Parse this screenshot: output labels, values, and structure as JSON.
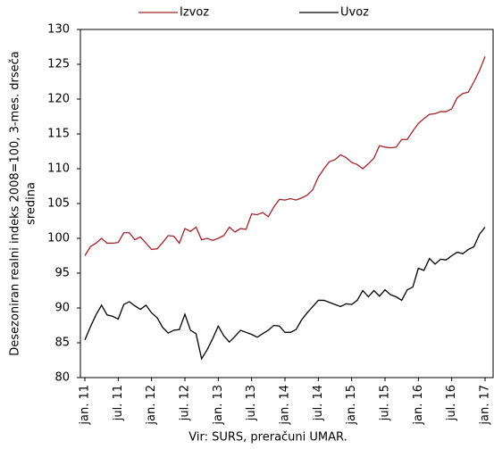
{
  "chart_data": {
    "type": "line",
    "y_label": [
      "Desezoniran realni indeks 2008=100, 3-mes. drseča",
      "sredina"
    ],
    "source": "Vir: SURS, preračuni UMAR.",
    "categories": [
      "jan. 11",
      null,
      null,
      null,
      null,
      null,
      "jul. 11",
      null,
      null,
      null,
      null,
      null,
      "jan. 12",
      null,
      null,
      null,
      null,
      null,
      "jul. 12",
      null,
      null,
      null,
      null,
      null,
      "jan. 13",
      null,
      null,
      null,
      null,
      null,
      "jul. 13",
      null,
      null,
      null,
      null,
      null,
      "jan. 14",
      null,
      null,
      null,
      null,
      null,
      "jul. 14",
      null,
      null,
      null,
      null,
      null,
      "jan. 15",
      null,
      null,
      null,
      null,
      null,
      "jul. 15",
      null,
      null,
      null,
      null,
      null,
      "jan. 16",
      null,
      null,
      null,
      null,
      null,
      "jul. 16",
      null,
      null,
      null,
      null,
      null,
      "jan. 17"
    ],
    "series": [
      {
        "name": "Izvoz",
        "color": "#a0242b",
        "values": [
          97.5,
          98.8,
          99.3,
          100.0,
          99.3,
          99.3,
          99.4,
          100.8,
          100.8,
          99.8,
          100.2,
          99.3,
          98.4,
          98.5,
          99.4,
          100.4,
          100.3,
          99.3,
          101.4,
          101.0,
          101.6,
          99.8,
          100.0,
          99.7,
          100.0,
          100.4,
          101.6,
          100.9,
          101.4,
          101.3,
          103.5,
          103.4,
          103.7,
          103.1,
          104.5,
          105.6,
          105.5,
          105.7,
          105.5,
          105.8,
          106.2,
          107.0,
          108.8,
          110.0,
          111.0,
          111.3,
          112.0,
          111.6,
          110.9,
          110.6,
          110.0,
          110.7,
          111.5,
          113.3,
          113.1,
          113.0,
          113.1,
          114.2,
          114.2,
          115.4,
          116.5,
          117.2,
          117.8,
          117.9,
          118.2,
          118.2,
          118.6,
          120.2,
          120.8,
          121.0,
          122.5,
          124.1,
          126.1
        ]
      },
      {
        "name": "Uvoz",
        "color": "#000000",
        "values": [
          85.4,
          87.3,
          89.0,
          90.4,
          89.0,
          88.8,
          88.4,
          90.5,
          90.9,
          90.3,
          89.8,
          90.4,
          89.3,
          88.6,
          87.2,
          86.4,
          86.8,
          86.9,
          89.1,
          86.8,
          86.3,
          82.7,
          84.0,
          85.6,
          87.4,
          86.0,
          85.1,
          85.9,
          86.8,
          86.5,
          86.2,
          85.8,
          86.3,
          86.8,
          87.5,
          87.4,
          86.5,
          86.5,
          86.9,
          88.3,
          89.3,
          90.2,
          91.1,
          91.1,
          90.8,
          90.5,
          90.2,
          90.6,
          90.5,
          91.1,
          92.5,
          91.6,
          92.5,
          91.7,
          92.6,
          91.9,
          91.6,
          91.1,
          92.6,
          93.0,
          95.7,
          95.4,
          97.1,
          96.3,
          97.0,
          96.9,
          97.5,
          98.0,
          97.8,
          98.4,
          98.8,
          100.6,
          101.6
        ]
      }
    ],
    "ylim": [
      80,
      130
    ],
    "yticks": [
      80,
      85,
      90,
      95,
      100,
      105,
      110,
      115,
      120,
      125,
      130
    ],
    "grid": false,
    "legend": "top"
  }
}
